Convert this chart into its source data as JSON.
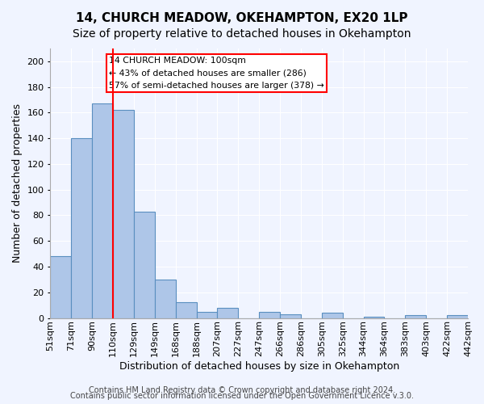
{
  "title": "14, CHURCH MEADOW, OKEHAMPTON, EX20 1LP",
  "subtitle": "Size of property relative to detached houses in Okehampton",
  "xlabel": "Distribution of detached houses by size in Okehampton",
  "ylabel": "Number of detached properties",
  "bin_labels": [
    "51sqm",
    "71sqm",
    "90sqm",
    "110sqm",
    "129sqm",
    "149sqm",
    "168sqm",
    "188sqm",
    "207sqm",
    "227sqm",
    "247sqm",
    "266sqm",
    "286sqm",
    "305sqm",
    "325sqm",
    "344sqm",
    "364sqm",
    "383sqm",
    "403sqm",
    "422sqm",
    "442sqm"
  ],
  "bar_heights": [
    48,
    140,
    167,
    162,
    83,
    30,
    12,
    5,
    8,
    0,
    5,
    3,
    0,
    4,
    0,
    1,
    0,
    2,
    0,
    2
  ],
  "bar_color": "#aec6e8",
  "bar_edge_color": "#5a8fc0",
  "red_line_x": 3,
  "ylim": [
    0,
    210
  ],
  "yticks": [
    0,
    20,
    40,
    60,
    80,
    100,
    120,
    140,
    160,
    180,
    200
  ],
  "annotation_box_text": "14 CHURCH MEADOW: 100sqm\n← 43% of detached houses are smaller (286)\n57% of semi-detached houses are larger (378) →",
  "footer_line1": "Contains HM Land Registry data © Crown copyright and database right 2024.",
  "footer_line2": "Contains public sector information licensed under the Open Government Licence v.3.0.",
  "background_color": "#f0f4ff",
  "grid_color": "#ffffff",
  "title_fontsize": 11,
  "subtitle_fontsize": 10,
  "axis_label_fontsize": 9,
  "tick_fontsize": 8,
  "footer_fontsize": 7
}
